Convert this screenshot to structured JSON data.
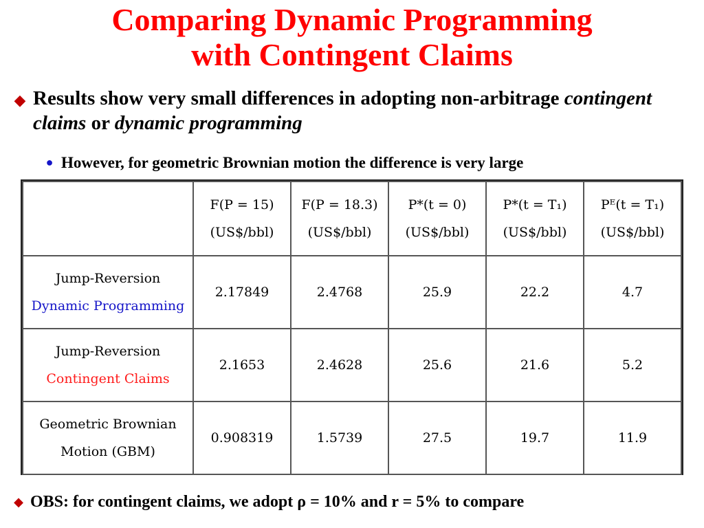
{
  "slide": {
    "title_line1": "Comparing Dynamic Programming",
    "title_line2": "with Contingent Claims",
    "bullet1": {
      "part1": "Results show very small differences in adopting non-arbitrage ",
      "italic1": "contingent claims",
      "part2": " or ",
      "italic2": "dynamic programming"
    },
    "sub_bullet": "However, for geometric Brownian motion the difference is very large",
    "bullet2": {
      "part1": "OBS: for contingent claims, we adopt ",
      "rho": "ρ",
      "part2": " = 10% and r = 5% to compare"
    },
    "colors": {
      "title": "#ff0000",
      "diamond": "#c00000",
      "dot": "#1515c8",
      "dp_label": "#1515c8",
      "cc_label": "#ff1a1a"
    },
    "icons": {
      "bullet1": "diamond-bullet-icon",
      "sub_bullet": "dot-bullet-icon",
      "bullet2": "diamond-bullet-icon"
    }
  },
  "table": {
    "headers": [
      {
        "line1": "",
        "line2": ""
      },
      {
        "line1": "F(P = 15)",
        "line2": "(US$/bbl)"
      },
      {
        "line1": "F(P = 18.3)",
        "line2": "(US$/bbl)"
      },
      {
        "line1": "P*(t = 0)",
        "line2": "(US$/bbl)"
      },
      {
        "line1": "P*(t = T₁)",
        "line2": "(US$/bbl)"
      },
      {
        "line1": "Pᴱ(t = T₁)",
        "line2": "(US$/bbl)"
      }
    ],
    "rows": [
      {
        "label1": "Jump-Reversion",
        "label2": "Dynamic Programming",
        "values": [
          "2.17849",
          "2.4768",
          "25.9",
          "22.2",
          "4.7"
        ]
      },
      {
        "label1": "Jump-Reversion",
        "label2": "Contingent Claims",
        "values": [
          "2.1653",
          "2.4628",
          "25.6",
          "21.6",
          "5.2"
        ]
      },
      {
        "label1": "Geometric Brownian",
        "label2": "Motion (GBM)",
        "values": [
          "0.908319",
          "1.5739",
          "27.5",
          "19.7",
          "11.9"
        ]
      }
    ]
  }
}
